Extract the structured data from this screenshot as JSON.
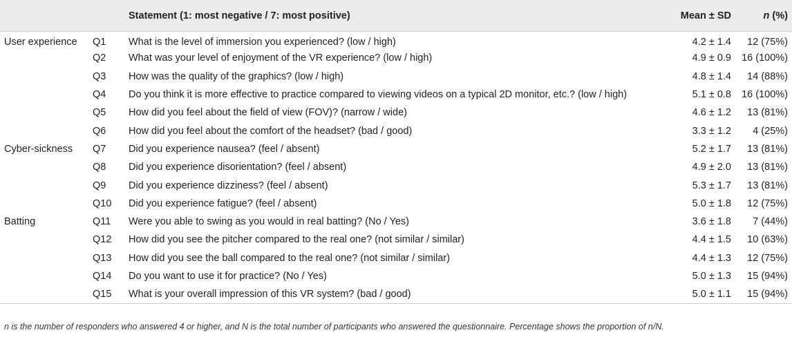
{
  "header": {
    "statement": "Statement (1: most negative / 7: most positive)",
    "mean_sd": "Mean ± SD",
    "n_italic": "n",
    "n_suffix": " (%)"
  },
  "rows": [
    {
      "category": "User experience",
      "q": "Q1",
      "statement": "What is the level of immersion you experienced? (low / high)",
      "mean_sd": "4.2 ± 1.4",
      "n": "12 (75%)"
    },
    {
      "category": "",
      "q": "Q2",
      "statement": "What was your level of enjoyment of the VR experience? (low / high)",
      "mean_sd": "4.9 ± 0.9",
      "n": "16 (100%)"
    },
    {
      "category": "",
      "q": "Q3",
      "statement": "How was the quality of the graphics? (low / high)",
      "mean_sd": "4.8 ± 1.4",
      "n": "14 (88%)"
    },
    {
      "category": "",
      "q": "Q4",
      "statement": "Do you think it is more effective to practice compared to viewing videos on a typical 2D monitor, etc.? (low / high)",
      "mean_sd": "5.1 ± 0.8",
      "n": "16 (100%)"
    },
    {
      "category": "",
      "q": "Q5",
      "statement": "How did you feel about the field of view (FOV)? (narrow / wide)",
      "mean_sd": "4.6 ± 1.2",
      "n": "13 (81%)"
    },
    {
      "category": "",
      "q": "Q6",
      "statement": "How did you feel about the comfort of the headset? (bad / good)",
      "mean_sd": "3.3 ± 1.2",
      "n": "4 (25%)"
    },
    {
      "category": "Cyber-sickness",
      "q": "Q7",
      "statement": "Did you experience nausea? (feel / absent)",
      "mean_sd": "5.2 ± 1.7",
      "n": "13 (81%)"
    },
    {
      "category": "",
      "q": "Q8",
      "statement": "Did you experience disorientation? (feel / absent)",
      "mean_sd": "4.9 ± 2.0",
      "n": "13 (81%)"
    },
    {
      "category": "",
      "q": "Q9",
      "statement": "Did you experience dizziness? (feel / absent)",
      "mean_sd": "5.3 ± 1.7",
      "n": "13 (81%)"
    },
    {
      "category": "",
      "q": "Q10",
      "statement": "Did you experience fatigue? (feel / absent)",
      "mean_sd": "5.0 ± 1.8",
      "n": "12 (75%)"
    },
    {
      "category": "Batting",
      "q": "Q11",
      "statement": "Were you able to swing as you would in real batting? (No / Yes)",
      "mean_sd": "3.6 ± 1.8",
      "n": "7 (44%)"
    },
    {
      "category": "",
      "q": "Q12",
      "statement": "How did you see the pitcher compared to the real one? (not similar / similar)",
      "mean_sd": "4.4 ± 1.5",
      "n": "10 (63%)"
    },
    {
      "category": "",
      "q": "Q13",
      "statement": "How did you see the ball compared to the real one? (not similar / similar)",
      "mean_sd": "4.4 ± 1.3",
      "n": "12 (75%)"
    },
    {
      "category": "",
      "q": "Q14",
      "statement": "Do you want to use it for practice? (No / Yes)",
      "mean_sd": "5.0 ± 1.3",
      "n": "15 (94%)"
    },
    {
      "category": "",
      "q": "Q15",
      "statement": "What is your overall impression of this VR system? (bad / good)",
      "mean_sd": "5.0 ± 1.1",
      "n": "15 (94%)"
    }
  ],
  "footnote": "n is the number of responders who answered 4 or higher, and N is the total number of participants who answered the questionnaire. Percentage shows the proportion of n/N."
}
